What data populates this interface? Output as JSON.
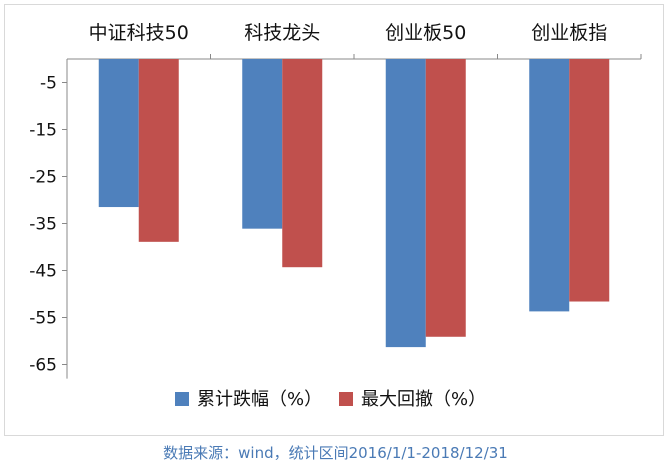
{
  "chart_data": {
    "type": "bar",
    "categories": [
      "中证科技50",
      "科技龙头",
      "创业板50",
      "创业板指"
    ],
    "series": [
      {
        "name": "累计跌幅（%）",
        "color": "#4f81bd",
        "values": [
          -31.5,
          -36.1,
          -61.3,
          -53.7
        ]
      },
      {
        "name": "最大回撤（%）",
        "color": "#c0504d",
        "values": [
          -38.9,
          -44.3,
          -59.1,
          -51.6
        ]
      }
    ],
    "ylim": [
      -68,
      0
    ],
    "yticks": [
      -5,
      -15,
      -25,
      -35,
      -45,
      -55,
      -65
    ],
    "ytick_labels": [
      "-5",
      "-15",
      "-25",
      "-35",
      "-45",
      "-55",
      "-65"
    ],
    "category_position": "top",
    "legend_position": "bottom",
    "grid": false
  },
  "source_note": "数据来源：wind，统计区间2016/1/1-2018/12/31"
}
